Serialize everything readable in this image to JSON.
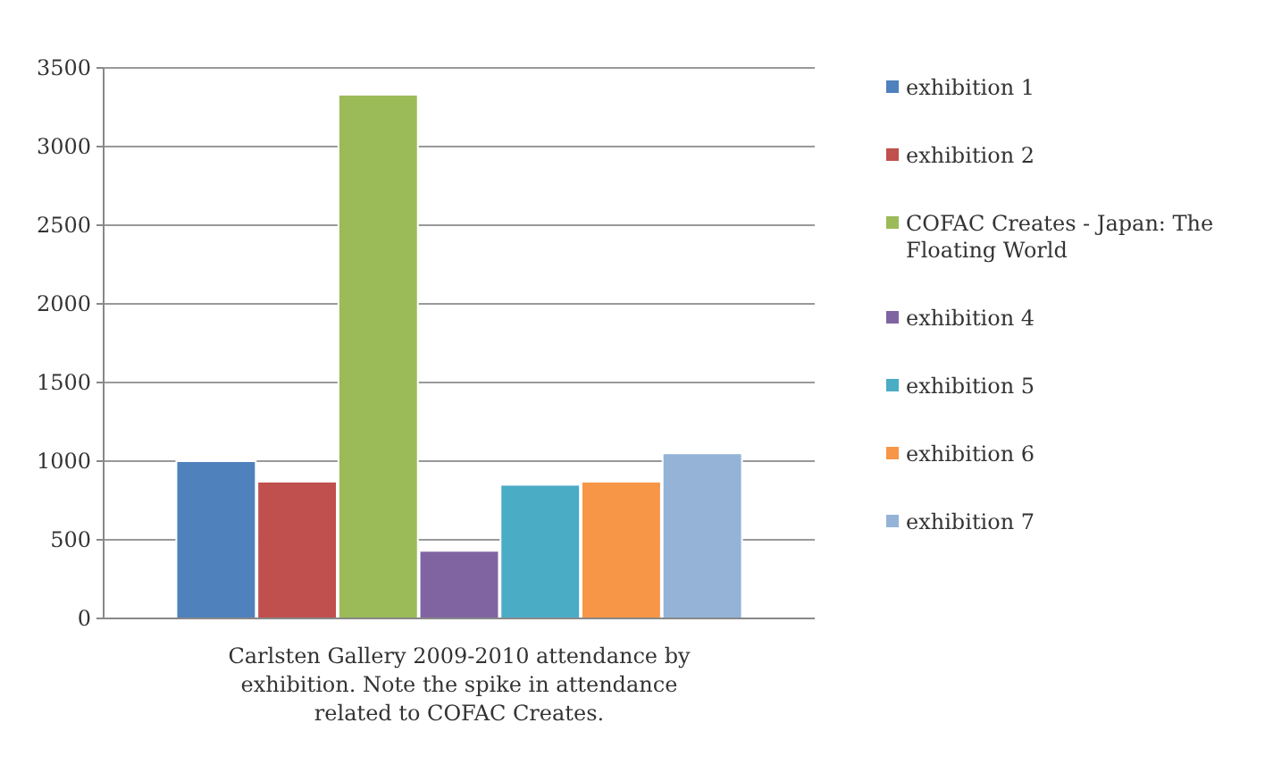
{
  "chart_data": {
    "type": "bar",
    "categories": [
      null
    ],
    "series": [
      {
        "name": "exhibition 1",
        "color": "#4f81bd",
        "values": [
          1000
        ]
      },
      {
        "name": "exhibition 2",
        "color": "#c0504d",
        "values": [
          870
        ]
      },
      {
        "name": "COFAC Creates - Japan: The Floating World",
        "color": "#9bbb59",
        "values": [
          3330
        ]
      },
      {
        "name": "exhibition 4",
        "color": "#8064a2",
        "values": [
          430
        ]
      },
      {
        "name": "exhibition 5",
        "color": "#4bacc6",
        "values": [
          850
        ]
      },
      {
        "name": "exhibition 6",
        "color": "#f79646",
        "values": [
          870
        ]
      },
      {
        "name": "exhibition 7",
        "color": "#95b3d7",
        "values": [
          1050
        ]
      }
    ],
    "ylim": [
      0,
      3500
    ],
    "yticks": [
      0,
      500,
      1000,
      1500,
      2000,
      2500,
      3000,
      3500
    ],
    "grid": "y",
    "legend": "right",
    "annotations": [
      "Carlsten Gallery 2009-2010 attendance by exhibition. Note the spike in attendance related to COFAC Creates."
    ]
  }
}
